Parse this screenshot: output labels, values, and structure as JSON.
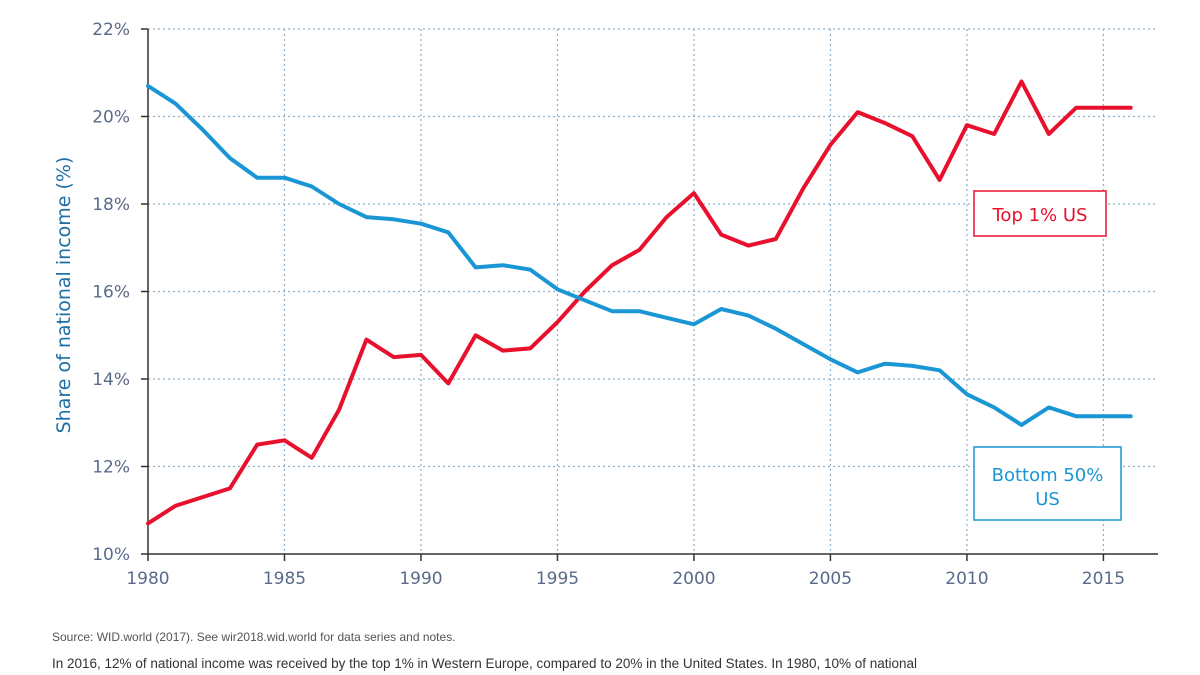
{
  "chart_data": {
    "type": "line",
    "title": "",
    "xlabel": "",
    "ylabel": "Share of national income (%)",
    "xlim": [
      1980,
      2016
    ],
    "ylim": [
      10,
      22
    ],
    "xticks": [
      1980,
      1985,
      1990,
      1995,
      2000,
      2005,
      2010,
      2015
    ],
    "xtick_labels": [
      "1980",
      "1985",
      "1990",
      "1995",
      "2000",
      "2005",
      "2010",
      "2015"
    ],
    "yticks": [
      10,
      12,
      14,
      16,
      18,
      20,
      22
    ],
    "ytick_labels": [
      "10%",
      "12%",
      "14%",
      "16%",
      "18%",
      "20%",
      "22%"
    ],
    "grid": true,
    "x": [
      1980,
      1981,
      1982,
      1983,
      1984,
      1985,
      1986,
      1987,
      1988,
      1989,
      1990,
      1991,
      1992,
      1993,
      1994,
      1995,
      1996,
      1997,
      1998,
      1999,
      2000,
      2001,
      2002,
      2003,
      2004,
      2005,
      2006,
      2007,
      2008,
      2009,
      2010,
      2011,
      2012,
      2013,
      2014,
      2015,
      2016
    ],
    "series": [
      {
        "name": "Top 1% US",
        "color": "#e8112d",
        "values": [
          10.7,
          11.1,
          11.3,
          11.5,
          12.5,
          12.6,
          12.2,
          13.3,
          14.9,
          14.5,
          14.55,
          13.9,
          15.0,
          14.65,
          14.7,
          15.3,
          16.0,
          16.6,
          16.95,
          17.7,
          18.25,
          17.3,
          17.05,
          17.2,
          18.35,
          19.35,
          20.1,
          19.85,
          19.55,
          18.55,
          19.8,
          19.6,
          20.8,
          19.6,
          20.2,
          20.2,
          20.2
        ]
      },
      {
        "name": "Bottom 50% US",
        "color": "#1a96d4",
        "values": [
          20.7,
          20.3,
          19.7,
          19.05,
          18.6,
          18.6,
          18.4,
          18.0,
          17.7,
          17.65,
          17.55,
          17.35,
          16.55,
          16.6,
          16.5,
          16.05,
          15.8,
          15.55,
          15.55,
          15.4,
          15.25,
          15.6,
          15.45,
          15.15,
          14.8,
          14.45,
          14.15,
          14.35,
          14.3,
          14.2,
          13.65,
          13.35,
          12.95,
          13.35,
          13.15,
          13.15,
          13.15
        ]
      }
    ],
    "legend": [
      {
        "series": "Top 1% US",
        "lines": [
          "Top 1% US"
        ]
      },
      {
        "series": "Bottom 50% US",
        "lines": [
          "Bottom 50%",
          "US"
        ]
      }
    ]
  },
  "footer": {
    "source": "Source:  WID.world (2017). See wir2018.wid.world for data series and notes.",
    "caption": "In 2016, 12% of national income was received by the top 1% in Western Europe, compared to 20% in the United States. In 1980, 10% of national"
  }
}
